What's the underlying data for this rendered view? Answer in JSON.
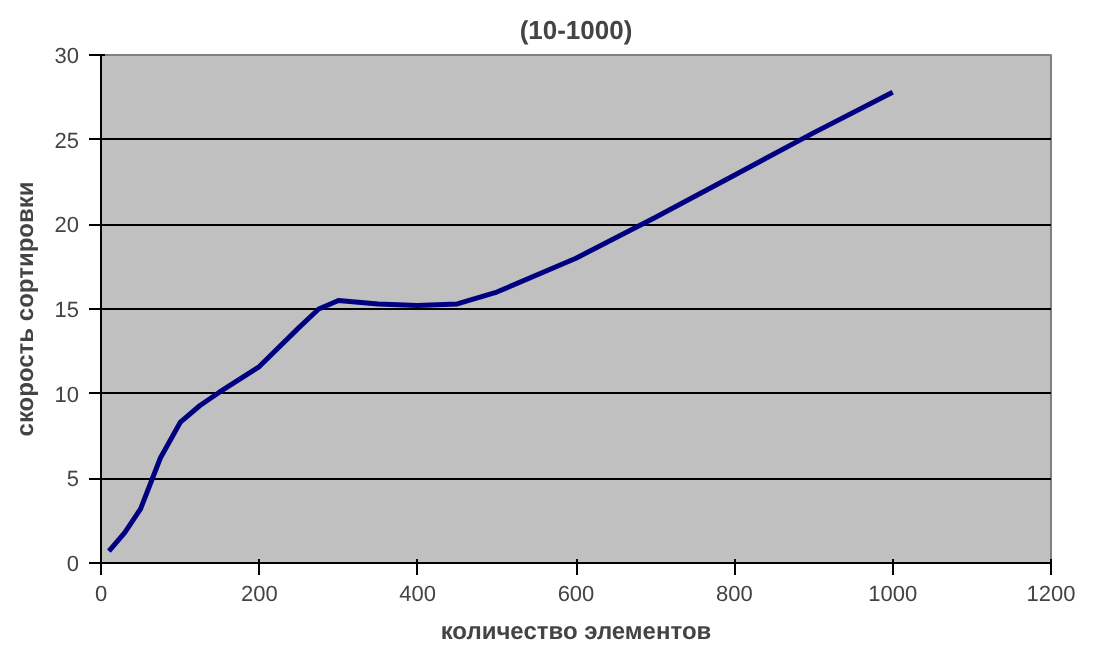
{
  "chart_data": {
    "type": "line",
    "title": "(10-1000)",
    "xlabel": "количество элементов",
    "ylabel": "скорость сортировки",
    "x": [
      10,
      30,
      50,
      75,
      100,
      125,
      150,
      200,
      250,
      275,
      300,
      350,
      400,
      450,
      500,
      600,
      700,
      800,
      900,
      1000
    ],
    "series": [
      {
        "color": "#000080",
        "values": [
          0.7,
          1.8,
          3.2,
          6.2,
          8.3,
          9.3,
          10.1,
          11.6,
          13.9,
          15.0,
          15.5,
          15.3,
          15.2,
          15.3,
          16.0,
          18.0,
          20.4,
          22.9,
          25.4,
          27.8
        ]
      }
    ],
    "xlim": [
      0,
      1200
    ],
    "xticks": [
      0,
      200,
      400,
      600,
      800,
      1000,
      1200
    ],
    "ylim": [
      0,
      30
    ],
    "yticks": [
      0,
      5,
      10,
      15,
      20,
      25,
      30
    ],
    "grid": "y",
    "marker": "none",
    "line_style": "solid"
  }
}
